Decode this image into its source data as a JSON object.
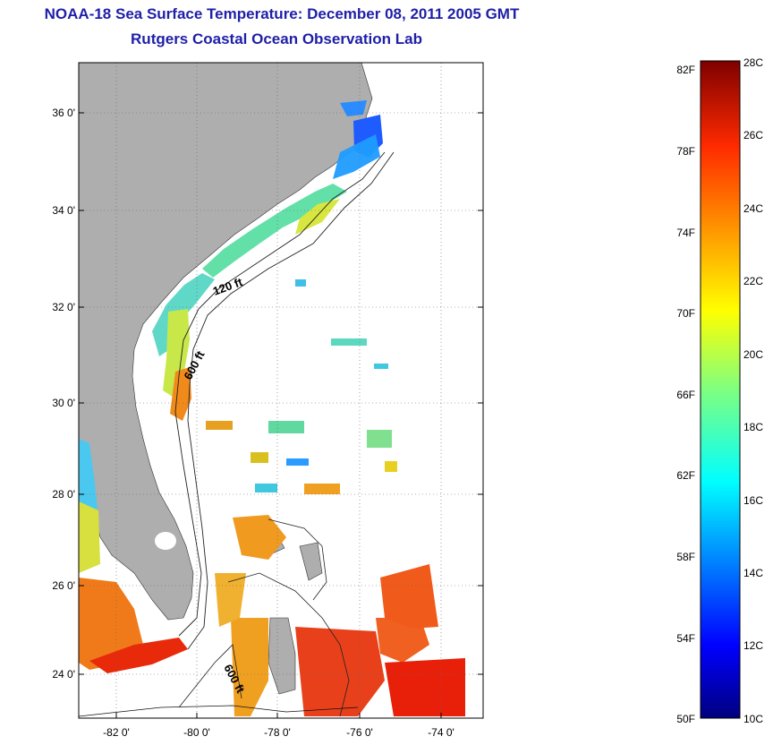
{
  "title": {
    "line1": "NOAA-18 Sea Surface Temperature:  December 08, 2011 2005 GMT",
    "line2": "Rutgers Coastal Ocean Observation Lab"
  },
  "map": {
    "lat_labels": [
      "36 0'",
      "34 0'",
      "32 0'",
      "30 0'",
      "28 0'",
      "26 0'",
      "24 0'"
    ],
    "lon_labels": [
      "-82 0'",
      "-80 0'",
      "-78 0'",
      "-76 0'",
      "-74 0'"
    ],
    "isobaths": [
      "120 ft",
      "600 ft",
      "600 ft"
    ]
  },
  "colorbar": {
    "fahrenheit": [
      "82F",
      "78F",
      "74F",
      "70F",
      "66F",
      "62F",
      "58F",
      "54F",
      "50F"
    ],
    "celsius": [
      "28C",
      "26C",
      "24C",
      "22C",
      "20C",
      "18C",
      "16C",
      "14C",
      "12C",
      "10C"
    ]
  },
  "colors": {
    "title": "#1f1fa8",
    "land": "#aeaeae",
    "ocean": "#ffffff",
    "scale": [
      "#00007f",
      "#0000ff",
      "#007fff",
      "#00ffff",
      "#7fff7f",
      "#ffff00",
      "#ff7f00",
      "#ff0000",
      "#7f0000"
    ]
  }
}
